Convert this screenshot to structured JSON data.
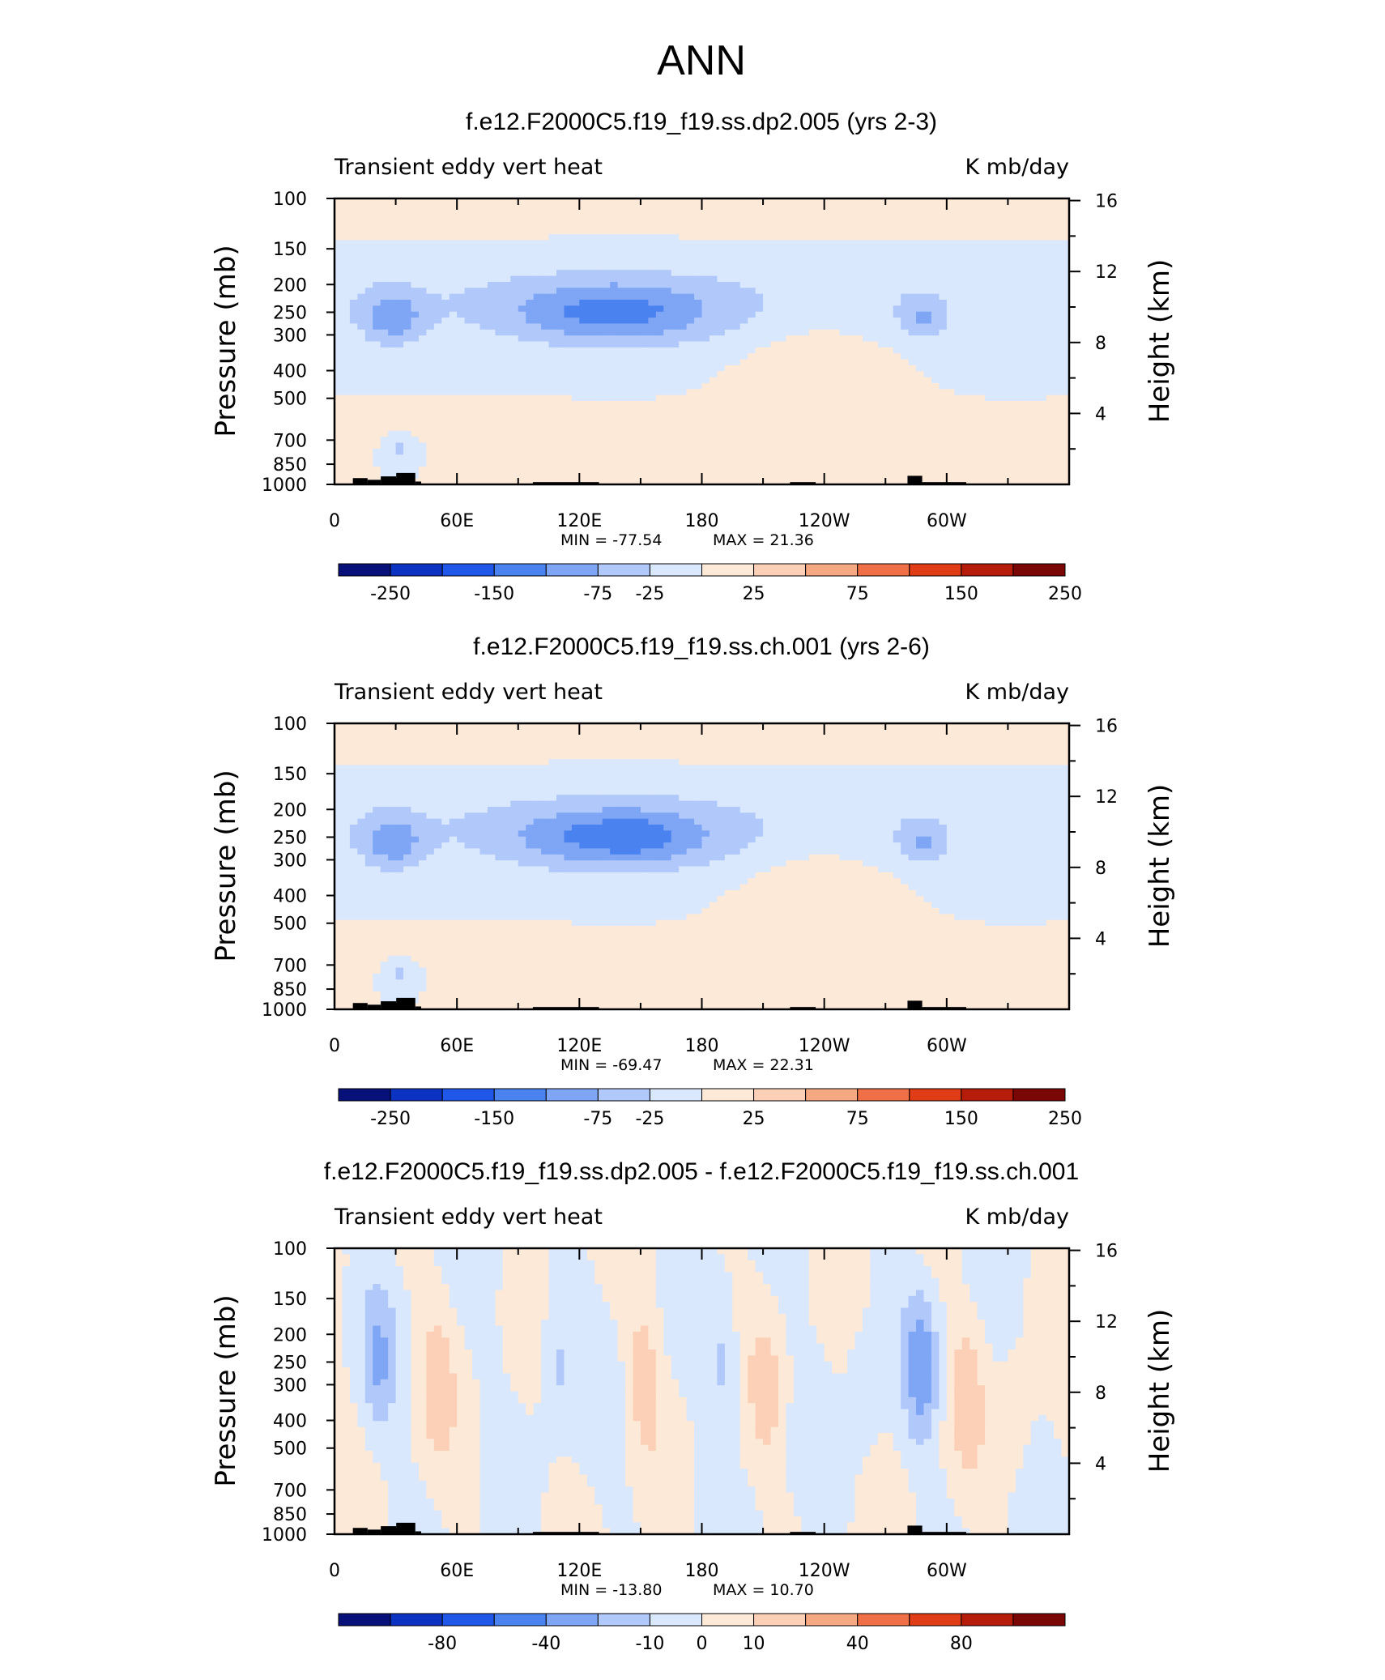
{
  "page_title": "ANN",
  "colors": {
    "neg": [
      "#08107a",
      "#0c32c2",
      "#1f57e8",
      "#4a82f0",
      "#7fa5f5",
      "#b0c8fa",
      "#d9e8fd"
    ],
    "pos": [
      "#fde9d8",
      "#fbd0b6",
      "#f6a883",
      "#ef6f47",
      "#e03c15",
      "#b51d0a",
      "#7a0605"
    ],
    "topography": "#000000"
  },
  "chart_data": [
    {
      "type": "heatmap",
      "title": "f.e12.F2000C5.f19_f19.ss.dp2.005 (yrs 2-3)",
      "left_label": "Transient eddy vert heat",
      "right_label": "K mb/day",
      "ylabel": "Pressure (mb)",
      "y2label": "Height (km)",
      "x_ticks": [
        "0",
        "60E",
        "120E",
        "180",
        "120W",
        "60W"
      ],
      "y_ticks": [
        "100",
        "150",
        "200",
        "250",
        "300",
        "400",
        "500",
        "700",
        "850",
        "1000"
      ],
      "y2_ticks": [
        "16",
        "12",
        "8",
        "4"
      ],
      "min_label": "MIN = -77.54",
      "max_label": "MAX =  21.36",
      "colorbar_labels": [
        "-250",
        "-150",
        "-75",
        "-25",
        "25",
        "75",
        "150",
        "250"
      ],
      "levels": [
        -250,
        -200,
        -150,
        -100,
        -75,
        -50,
        -25,
        0,
        25,
        50,
        75,
        100,
        150,
        200,
        250
      ],
      "base_value": 8
    },
    {
      "type": "heatmap",
      "title": "f.e12.F2000C5.f19_f19.ss.ch.001 (yrs 2-6)",
      "left_label": "Transient eddy vert heat",
      "right_label": "K mb/day",
      "ylabel": "Pressure (mb)",
      "y2label": "Height (km)",
      "x_ticks": [
        "0",
        "60E",
        "120E",
        "180",
        "120W",
        "60W"
      ],
      "y_ticks": [
        "100",
        "150",
        "200",
        "250",
        "300",
        "400",
        "500",
        "700",
        "850",
        "1000"
      ],
      "y2_ticks": [
        "16",
        "12",
        "8",
        "4"
      ],
      "min_label": "MIN = -69.47",
      "max_label": "MAX =  22.31",
      "colorbar_labels": [
        "-250",
        "-150",
        "-75",
        "-25",
        "25",
        "75",
        "150",
        "250"
      ],
      "levels": [
        -250,
        -200,
        -150,
        -100,
        -75,
        -50,
        -25,
        0,
        25,
        50,
        75,
        100,
        150,
        200,
        250
      ],
      "base_value": 8
    },
    {
      "type": "heatmap",
      "title": "f.e12.F2000C5.f19_f19.ss.dp2.005 - f.e12.F2000C5.f19_f19.ss.ch.001",
      "left_label": "Transient eddy vert heat",
      "right_label": "K mb/day",
      "ylabel": "Pressure (mb)",
      "y2label": "Height (km)",
      "x_ticks": [
        "0",
        "60E",
        "120E",
        "180",
        "120W",
        "60W"
      ],
      "y_ticks": [
        "100",
        "150",
        "200",
        "250",
        "300",
        "400",
        "500",
        "700",
        "850",
        "1000"
      ],
      "y2_ticks": [
        "16",
        "12",
        "8",
        "4"
      ],
      "min_label": "MIN = -13.80",
      "max_label": "MAX =  10.70",
      "colorbar_labels": [
        "-80",
        "-40",
        "-10",
        "0",
        "10",
        "40",
        "80"
      ],
      "levels": [
        -100,
        -80,
        -60,
        -40,
        -20,
        -10,
        -5,
        0,
        5,
        10,
        20,
        40,
        60,
        80,
        100
      ],
      "base_value": 2
    }
  ]
}
